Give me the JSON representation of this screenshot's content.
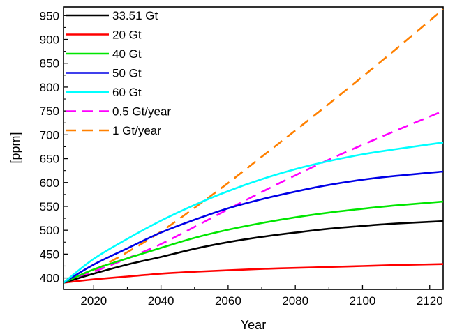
{
  "chart_data": {
    "type": "line",
    "xlabel": "Year",
    "ylabel": "[ppm]",
    "xlim": [
      2011,
      2124
    ],
    "ylim": [
      376,
      968
    ],
    "xticks": [
      2020,
      2040,
      2060,
      2080,
      2100,
      2120
    ],
    "yticks": [
      400,
      450,
      500,
      550,
      600,
      650,
      700,
      750,
      800,
      850,
      900,
      950
    ],
    "legend_position": "top-left",
    "grid": false,
    "series": [
      {
        "name": "33.51 Gt",
        "color": "#000000",
        "dash": "solid",
        "x": [
          2011,
          2020,
          2030,
          2040,
          2050,
          2060,
          2070,
          2080,
          2090,
          2100,
          2110,
          2124
        ],
        "y": [
          390,
          409,
          428,
          444,
          461,
          475,
          486,
          495,
          503,
          509,
          514,
          519
        ]
      },
      {
        "name": "20 Gt",
        "color": "#ff0000",
        "dash": "solid",
        "x": [
          2011,
          2020,
          2030,
          2040,
          2050,
          2060,
          2070,
          2080,
          2090,
          2100,
          2110,
          2124
        ],
        "y": [
          390,
          397,
          403,
          409,
          413,
          416,
          419,
          421,
          423,
          425,
          427,
          429
        ]
      },
      {
        "name": "40 Gt",
        "color": "#00e600",
        "dash": "solid",
        "x": [
          2011,
          2020,
          2030,
          2040,
          2050,
          2060,
          2070,
          2080,
          2090,
          2100,
          2110,
          2124
        ],
        "y": [
          390,
          418,
          441,
          463,
          484,
          501,
          515,
          527,
          537,
          545,
          552,
          560
        ]
      },
      {
        "name": "50 Gt",
        "color": "#0000e6",
        "dash": "solid",
        "x": [
          2011,
          2020,
          2030,
          2040,
          2050,
          2060,
          2070,
          2080,
          2090,
          2100,
          2110,
          2124
        ],
        "y": [
          390,
          428,
          462,
          495,
          522,
          546,
          565,
          581,
          595,
          606,
          614,
          623
        ]
      },
      {
        "name": "60 Gt",
        "color": "#00ffff",
        "dash": "solid",
        "x": [
          2011,
          2020,
          2030,
          2040,
          2050,
          2060,
          2070,
          2080,
          2090,
          2100,
          2110,
          2124
        ],
        "y": [
          390,
          440,
          482,
          520,
          553,
          582,
          607,
          628,
          645,
          659,
          670,
          684
        ]
      },
      {
        "name": "0.5 Gt/year",
        "color": "#ff00ff",
        "dash": "dashed",
        "x": [
          2011,
          2020,
          2030,
          2040,
          2050,
          2060,
          2070,
          2080,
          2090,
          2100,
          2110,
          2124
        ],
        "y": [
          390,
          413,
          441,
          471,
          507,
          544,
          580,
          615,
          648,
          679,
          709,
          750
        ]
      },
      {
        "name": "1 Gt/year",
        "color": "#ff8000",
        "dash": "dashed",
        "x": [
          2011,
          2020,
          2030,
          2040,
          2050,
          2060,
          2070,
          2080,
          2090,
          2100,
          2110,
          2124
        ],
        "y": [
          390,
          416,
          454,
          497,
          547,
          599,
          654,
          709,
          765,
          822,
          880,
          963
        ]
      }
    ]
  }
}
